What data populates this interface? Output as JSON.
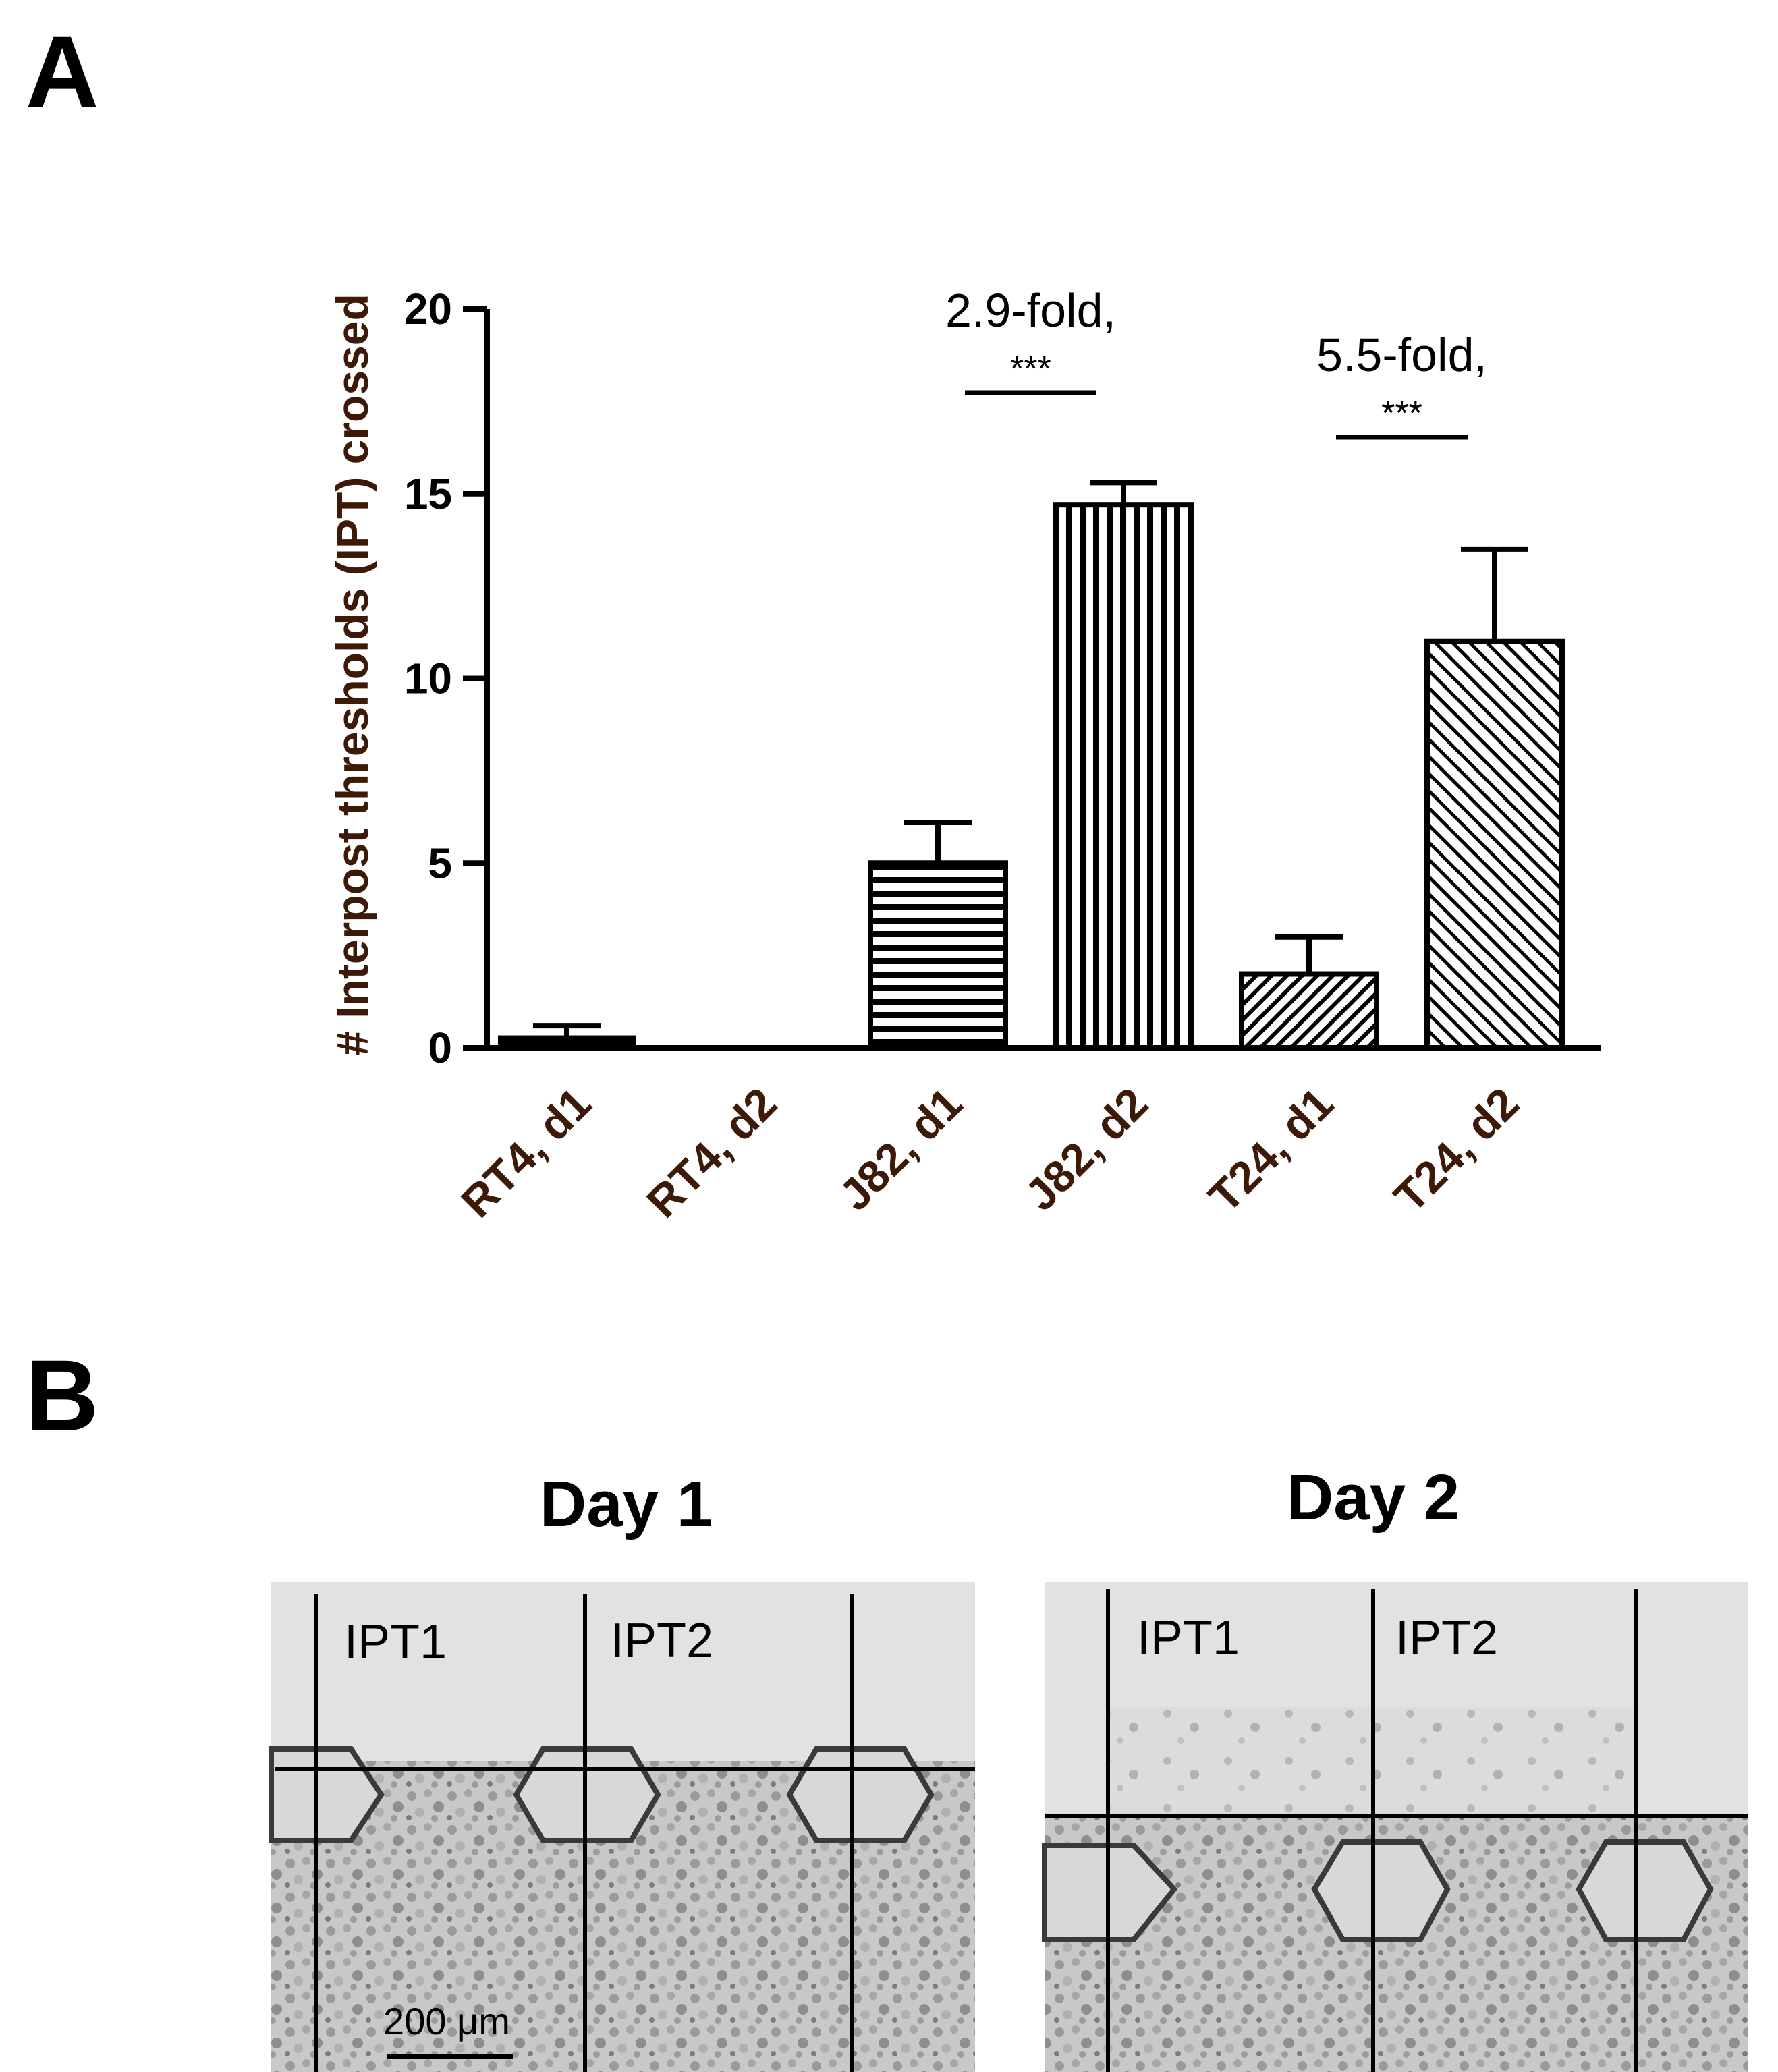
{
  "panels": {
    "a_label": "A",
    "b_label": "B"
  },
  "chart_data": {
    "type": "bar",
    "title": "",
    "xlabel": "",
    "ylabel": "# Interpost thresholds (IPT) crossed",
    "ylim": [
      0,
      20
    ],
    "yticks": [
      0,
      5,
      10,
      15,
      20
    ],
    "categories": [
      "RT4, d1",
      "RT4, d2",
      "J82, d1",
      "J82, d2",
      "T24, d1",
      "T24, d2"
    ],
    "values": [
      0.3,
      0.0,
      5.0,
      14.7,
      2.0,
      11.0
    ],
    "errors": [
      0.3,
      0.0,
      1.1,
      0.6,
      1.0,
      2.5
    ],
    "patterns": [
      "solid",
      "none",
      "horizontal",
      "vertical",
      "diagonal-dense",
      "diagonal"
    ],
    "annotations": [
      {
        "text": "2.9-fold,",
        "stars": "***",
        "from": "J82, d1",
        "to": "J82, d2"
      },
      {
        "text": "5.5-fold,",
        "stars": "***",
        "from": "T24, d1",
        "to": "T24, d2"
      }
    ],
    "colors": {
      "ylabel": "#3d1a08",
      "ink": "#000000"
    }
  },
  "micrographs": {
    "day1": {
      "title": "Day 1",
      "labels": [
        "IPT1",
        "IPT2"
      ],
      "scalebar": "200 μm"
    },
    "day2": {
      "title": "Day 2",
      "labels": [
        "IPT1",
        "IPT2"
      ]
    }
  }
}
